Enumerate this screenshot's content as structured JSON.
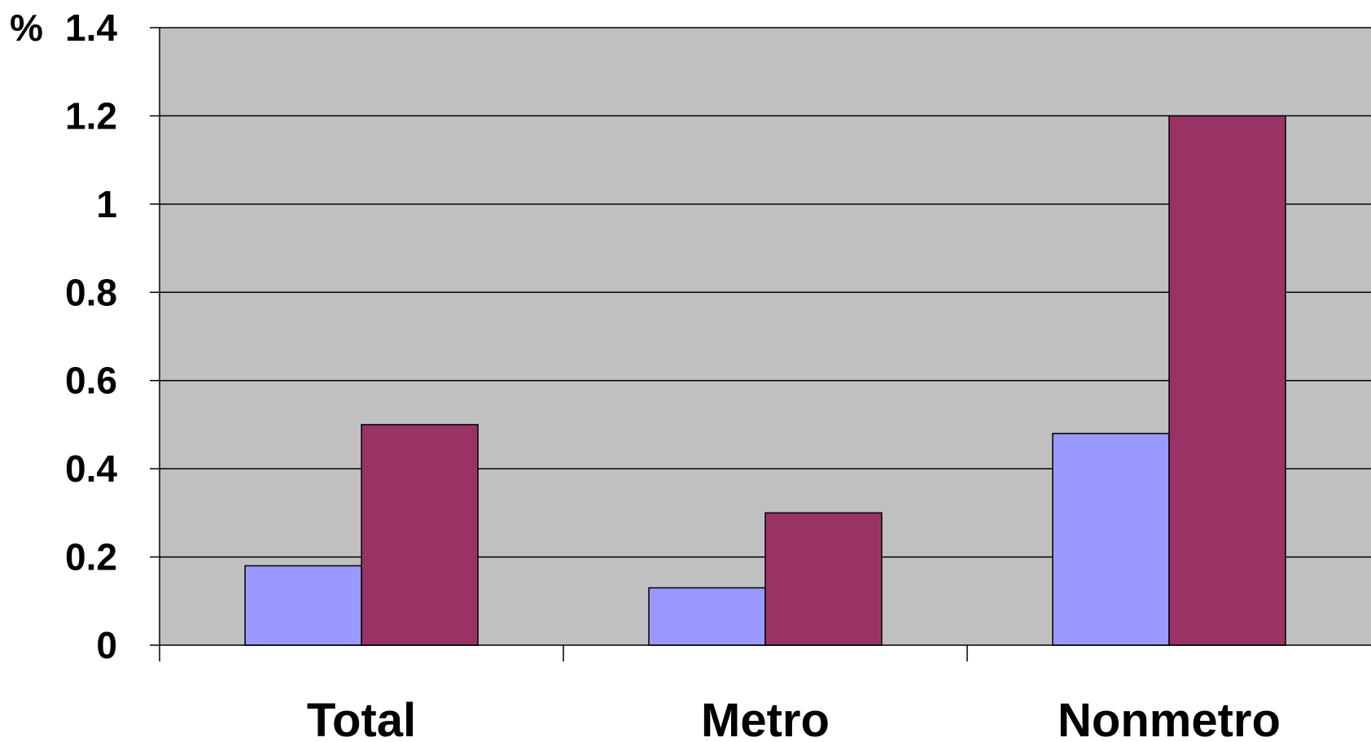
{
  "chart_data": {
    "type": "bar",
    "title": "",
    "xlabel": "",
    "ylabel": "",
    "unit_label": "%",
    "categories": [
      "Total",
      "Metro",
      "Nonmetro"
    ],
    "series": [
      {
        "values": [
          0.18,
          0.13,
          0.48
        ],
        "color": "#9999ff"
      },
      {
        "values": [
          0.5,
          0.3,
          1.2
        ],
        "color": "#993366"
      }
    ],
    "ylim": [
      0,
      1.4
    ],
    "yticks": [
      "0",
      "0.2",
      "0.4",
      "0.6",
      "0.8",
      "1",
      "1.2",
      "1.4"
    ],
    "grid": true,
    "plot_background": "#c0c0c0",
    "legend": "none"
  }
}
